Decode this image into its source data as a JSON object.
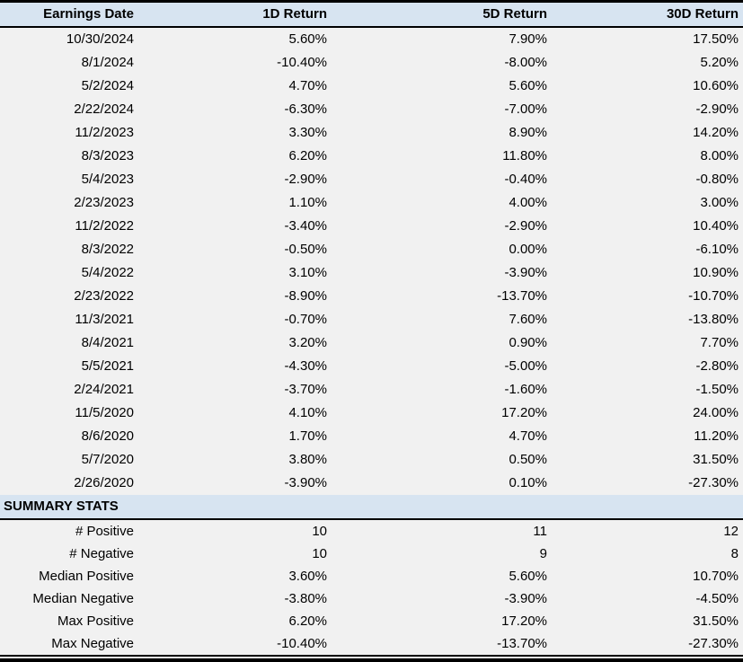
{
  "colors": {
    "header_bg": "#d7e4f1",
    "body_bg": "#f1f1f1",
    "border": "#000000",
    "text": "#000000"
  },
  "chart_data": {
    "type": "table",
    "columns": [
      "Earnings Date",
      "1D Return",
      "5D Return",
      "30D Return"
    ],
    "rows": [
      [
        "10/30/2024",
        "5.60%",
        "7.90%",
        "17.50%"
      ],
      [
        "8/1/2024",
        "-10.40%",
        "-8.00%",
        "5.20%"
      ],
      [
        "5/2/2024",
        "4.70%",
        "5.60%",
        "10.60%"
      ],
      [
        "2/22/2024",
        "-6.30%",
        "-7.00%",
        "-2.90%"
      ],
      [
        "11/2/2023",
        "3.30%",
        "8.90%",
        "14.20%"
      ],
      [
        "8/3/2023",
        "6.20%",
        "11.80%",
        "8.00%"
      ],
      [
        "5/4/2023",
        "-2.90%",
        "-0.40%",
        "-0.80%"
      ],
      [
        "2/23/2023",
        "1.10%",
        "4.00%",
        "3.00%"
      ],
      [
        "11/2/2022",
        "-3.40%",
        "-2.90%",
        "10.40%"
      ],
      [
        "8/3/2022",
        "-0.50%",
        "0.00%",
        "-6.10%"
      ],
      [
        "5/4/2022",
        "3.10%",
        "-3.90%",
        "10.90%"
      ],
      [
        "2/23/2022",
        "-8.90%",
        "-13.70%",
        "-10.70%"
      ],
      [
        "11/3/2021",
        "-0.70%",
        "7.60%",
        "-13.80%"
      ],
      [
        "8/4/2021",
        "3.20%",
        "0.90%",
        "7.70%"
      ],
      [
        "5/5/2021",
        "-4.30%",
        "-5.00%",
        "-2.80%"
      ],
      [
        "2/24/2021",
        "-3.70%",
        "-1.60%",
        "-1.50%"
      ],
      [
        "11/5/2020",
        "4.10%",
        "17.20%",
        "24.00%"
      ],
      [
        "8/6/2020",
        "1.70%",
        "4.70%",
        "11.20%"
      ],
      [
        "5/7/2020",
        "3.80%",
        "0.50%",
        "31.50%"
      ],
      [
        "2/26/2020",
        "-3.90%",
        "0.10%",
        "-27.30%"
      ]
    ],
    "summary_title": "SUMMARY STATS",
    "summary_rows": [
      [
        "# Positive",
        "10",
        "11",
        "12"
      ],
      [
        "# Negative",
        "10",
        "9",
        "8"
      ],
      [
        "Median Positive",
        "3.60%",
        "5.60%",
        "10.70%"
      ],
      [
        "Median Negative",
        "-3.80%",
        "-3.90%",
        "-4.50%"
      ],
      [
        "Max Positive",
        "6.20%",
        "17.20%",
        "31.50%"
      ],
      [
        "Max Negative",
        "-10.40%",
        "-13.70%",
        "-27.30%"
      ]
    ]
  }
}
